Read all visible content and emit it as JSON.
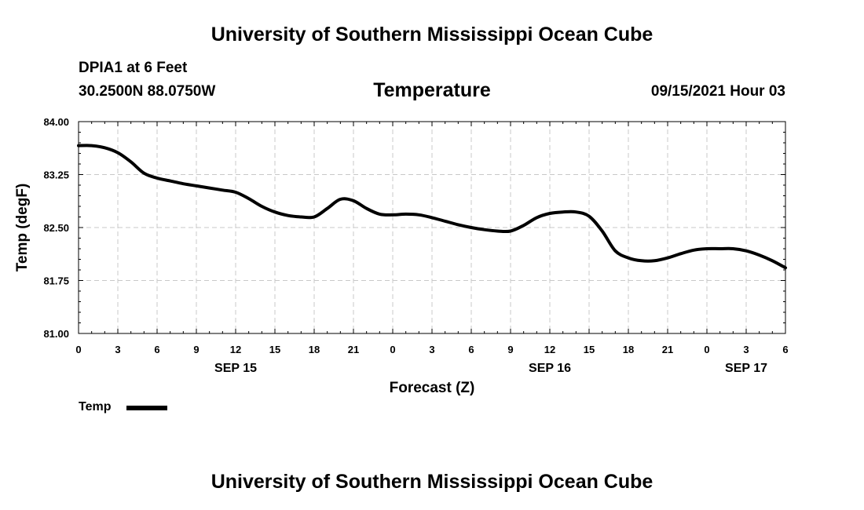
{
  "header": {
    "title": "University of Southern Mississippi Ocean Cube",
    "station": "DPIA1 at 6 Feet",
    "coordinates": "30.2500N  88.0750W",
    "variable": "Temperature",
    "datetime": "09/15/2021 Hour 03"
  },
  "footer": {
    "title": "University of Southern Mississippi Ocean Cube"
  },
  "legend": {
    "label": "Temp"
  },
  "chart_data": {
    "type": "line",
    "title": "Temperature",
    "xlabel": "Forecast (Z)",
    "ylabel": "Temp (degF)",
    "ylim": [
      81.0,
      84.0
    ],
    "xlim": [
      0,
      54
    ],
    "yticks": [
      "84.00",
      "83.25",
      "82.50",
      "81.75",
      "81.00"
    ],
    "ytick_values": [
      84.0,
      83.25,
      82.5,
      81.75,
      81.0
    ],
    "xticks": [
      "0",
      "3",
      "6",
      "9",
      "12",
      "15",
      "18",
      "21",
      "0",
      "3",
      "6",
      "9",
      "12",
      "15",
      "18",
      "21",
      "0",
      "3",
      "6"
    ],
    "date_labels": [
      {
        "label": "SEP 15",
        "hour": 12
      },
      {
        "label": "SEP 16",
        "hour": 36
      },
      {
        "label": "SEP 17",
        "hour": 51
      }
    ],
    "grid": true,
    "series": [
      {
        "name": "Temp",
        "color": "#000000",
        "x": [
          0,
          1,
          2,
          3,
          4,
          5,
          6,
          7,
          8,
          9,
          10,
          11,
          12,
          13,
          14,
          15,
          16,
          17,
          18,
          19,
          20,
          21,
          22,
          23,
          24,
          25,
          26,
          27,
          28,
          29,
          30,
          31,
          32,
          33,
          34,
          35,
          36,
          37,
          38,
          39,
          40,
          41,
          42,
          43,
          44,
          45,
          46,
          47,
          48,
          49,
          50,
          51,
          52,
          53,
          54
        ],
        "values": [
          83.66,
          83.66,
          83.63,
          83.56,
          83.43,
          83.27,
          83.2,
          83.16,
          83.12,
          83.09,
          83.06,
          83.03,
          83.0,
          82.91,
          82.8,
          82.72,
          82.67,
          82.65,
          82.65,
          82.77,
          82.9,
          82.88,
          82.77,
          82.69,
          82.68,
          82.69,
          82.68,
          82.64,
          82.59,
          82.54,
          82.5,
          82.47,
          82.45,
          82.45,
          82.53,
          82.64,
          82.7,
          82.72,
          82.72,
          82.66,
          82.45,
          82.17,
          82.07,
          82.03,
          82.03,
          82.07,
          82.13,
          82.18,
          82.2,
          82.2,
          82.2,
          82.17,
          82.11,
          82.03,
          81.93
        ]
      }
    ]
  }
}
